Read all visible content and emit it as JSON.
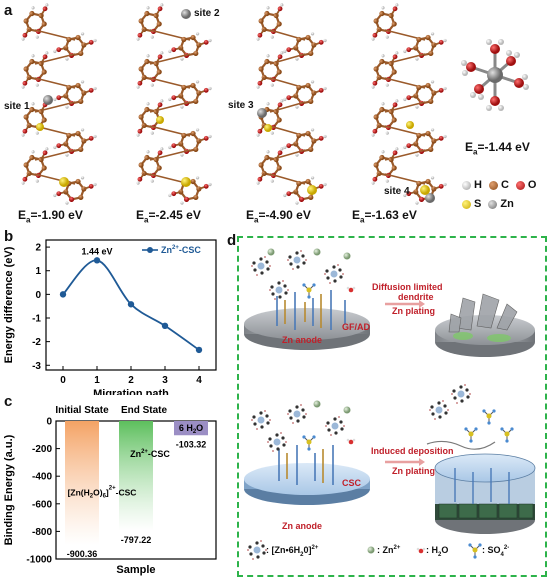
{
  "panel_labels": {
    "a": "a",
    "b": "b",
    "c": "c",
    "d": "d"
  },
  "panel_a": {
    "energies": [
      {
        "prefix": "E",
        "sub": "a",
        "value": "=-1.90 eV"
      },
      {
        "prefix": "E",
        "sub": "a",
        "value": "=-2.45 eV"
      },
      {
        "prefix": "E",
        "sub": "a",
        "value": "=-4.90 eV"
      },
      {
        "prefix": "E",
        "sub": "a",
        "value": "=-1.63 eV"
      },
      {
        "prefix": "E",
        "sub": "a",
        "value": "=-1.44 eV"
      }
    ],
    "sites": [
      "site 1",
      "site 2",
      "site 3",
      "site 4"
    ],
    "legend": [
      {
        "label": "H",
        "color": "#e8e8e8"
      },
      {
        "label": "C",
        "color": "#b5651d"
      },
      {
        "label": "O",
        "color": "#d62020"
      },
      {
        "label": "S",
        "color": "#e8d020"
      },
      {
        "label": "Zn",
        "color": "#9a9a9a"
      }
    ]
  },
  "chart_data": [
    {
      "type": "line",
      "panel": "b",
      "x": [
        0,
        1,
        2,
        3,
        4
      ],
      "series": [
        {
          "name": "Zn2+-CSC",
          "values": [
            0,
            1.44,
            -0.42,
            -1.33,
            -2.35
          ]
        }
      ],
      "annotation": "1.44 eV",
      "xlabel": "Migration path",
      "ylabel": "Energy difference (eV)",
      "xticks": [
        "0",
        "1",
        "2",
        "3",
        "4"
      ],
      "yticks": [
        "2",
        "1",
        "0",
        "-1",
        "-2",
        "-3"
      ],
      "xlim": [
        -0.5,
        4.5
      ],
      "ylim": [
        -3.2,
        2.3
      ],
      "legend_position": "top-right",
      "color": "#1f5a96"
    },
    {
      "type": "bar",
      "panel": "c",
      "categories": [
        "Initial State",
        "End State",
        "6 H2O"
      ],
      "values": [
        -900.36,
        -797.22,
        -103.32
      ],
      "value_labels": [
        "-900.36",
        "-797.22",
        "-103.32"
      ],
      "bar_labels": [
        "[Zn(H2O)6]2+-CSC",
        "Zn2+-CSC",
        "6 H2O"
      ],
      "xlabel": "Sample",
      "ylabel": "Binding Energy (a.u.)",
      "yticks": [
        "0",
        "-200",
        "-400",
        "-600",
        "-800",
        "-1000"
      ],
      "ylim": [
        -1000,
        0
      ],
      "colors": [
        "#f4a264",
        "#5dbf5d",
        "#9b8ec4"
      ]
    }
  ],
  "panel_d": {
    "top": {
      "arrow_text": "Diffusion limited",
      "arrow_text2": "dendrite",
      "process": "Zn plating",
      "sep_label": "GF/AD",
      "anode_label": "Zn anode"
    },
    "bottom": {
      "arrow_text": "Induced deposition",
      "process": "Zn plating",
      "sep_label": "CSC",
      "anode_label": "Zn anode"
    },
    "legend": [
      {
        "formula": ": [Zn•6H2O]2+"
      },
      {
        "formula": ": Zn2+"
      },
      {
        "formula": ": H2O"
      },
      {
        "formula": ": SO42-"
      }
    ]
  }
}
